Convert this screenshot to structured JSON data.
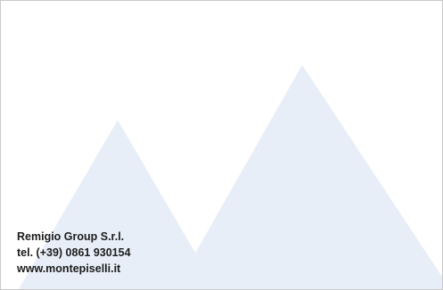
{
  "contact": {
    "company": "Remigio Group S.r.l.",
    "phone": "tel. (+39) 0861 930154",
    "website": "www.montepiselli.it"
  },
  "colors": {
    "mountain_fill": "#e8eef7",
    "background": "#ffffff",
    "text": "#1c1c1c",
    "border": "#c9c9c9"
  }
}
